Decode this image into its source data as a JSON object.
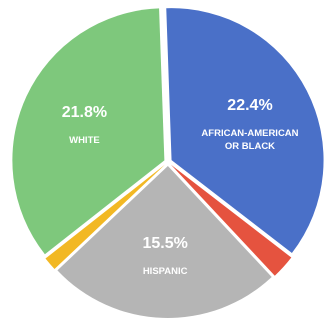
{
  "chart_data": {
    "type": "pie",
    "slices": [
      {
        "label": "AFRICAN-AMERICAN OR BLACK",
        "label_lines": [
          "AFRICAN-AMERICAN",
          "OR BLACK"
        ],
        "value_text": "22.4%",
        "value": 22.4,
        "color": "#4a70c8"
      },
      {
        "label": "",
        "label_lines": [],
        "value_text": "",
        "value": 1.6,
        "color": "#e5533f"
      },
      {
        "label": "HISPANIC",
        "label_lines": [
          "HISPANIC"
        ],
        "value_text": "15.5%",
        "value": 15.5,
        "color": "#b5b5b5"
      },
      {
        "label": "",
        "label_lines": [],
        "value_text": "",
        "value": 0.9,
        "color": "#f2b824"
      },
      {
        "label": "WHITE",
        "label_lines": [
          "WHITE"
        ],
        "value_text": "21.8%",
        "value": 21.8,
        "color": "#7ec87c"
      }
    ]
  }
}
